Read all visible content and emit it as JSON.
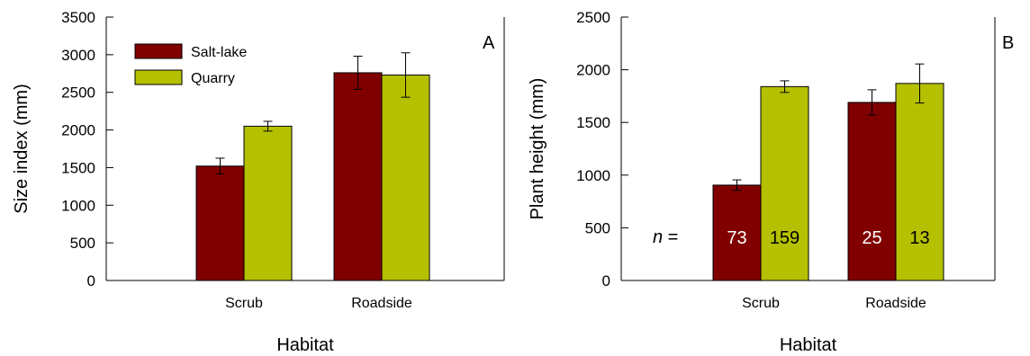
{
  "colors": {
    "salt_lake": "#800000",
    "quarry": "#b5c000",
    "n_label_text": "#ffffff"
  },
  "legend": {
    "salt_lake": "Salt-lake",
    "quarry": "Quarry"
  },
  "n_prefix": "n",
  "n_equals": " =",
  "chart_data": [
    {
      "type": "bar",
      "panel": "A",
      "categories": [
        "Scrub",
        "Roadside"
      ],
      "series": [
        {
          "name": "Salt-lake",
          "values": [
            1520,
            2760
          ],
          "errors": [
            105,
            220
          ]
        },
        {
          "name": "Quarry",
          "values": [
            2050,
            2730
          ],
          "errors": [
            65,
            295
          ]
        }
      ],
      "xlabel": "Habitat",
      "ylabel": "Size index (mm)",
      "ylim": [
        0,
        3500
      ],
      "yticks": [
        "0",
        "500",
        "1000",
        "1500",
        "2000",
        "2500",
        "3000",
        "3500"
      ],
      "grid": false,
      "legend_position": "top-left"
    },
    {
      "type": "bar",
      "panel": "B",
      "categories": [
        "Scrub",
        "Roadside"
      ],
      "series": [
        {
          "name": "Salt-lake",
          "values": [
            905,
            1690
          ],
          "errors": [
            50,
            120
          ],
          "n": [
            "73",
            "25"
          ]
        },
        {
          "name": "Quarry",
          "values": [
            1840,
            1870
          ],
          "errors": [
            55,
            185
          ],
          "n": [
            "159",
            "13"
          ]
        }
      ],
      "xlabel": "Habitat",
      "ylabel": "Plant height (mm)",
      "ylim": [
        0,
        2500
      ],
      "yticks": [
        "0",
        "500",
        "1000",
        "1500",
        "2000",
        "2500"
      ],
      "grid": false
    }
  ]
}
